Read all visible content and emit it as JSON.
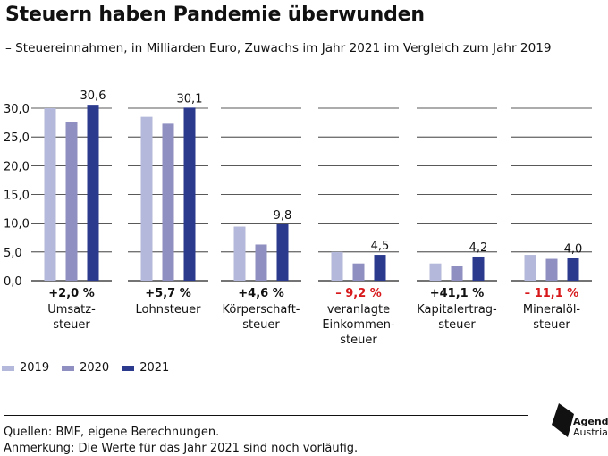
{
  "header": {
    "title": "Steuern haben Pandemie überwunden",
    "subtitle": "– Steuereinnahmen, in Milliarden Euro, Zuwachs im Jahr 2021 im Vergleich zum Jahr 2019"
  },
  "colors": {
    "y2019": "#b4b8da",
    "y2020": "#8f8fc2",
    "y2021": "#2b3a8c",
    "positive": "#111111",
    "negative": "#d7191c",
    "grid": "#222222"
  },
  "chart_data": {
    "type": "bar",
    "title": "Steuern haben Pandemie überwunden",
    "subtitle": "– Steuereinnahmen, in Milliarden Euro, Zuwachs im Jahr 2021 im Vergleich zum Jahr 2019",
    "categories": [
      {
        "label": [
          "Umsatz-",
          "steuer"
        ],
        "change": "+2,0 %",
        "change_sign": "positive",
        "label_2021": "30,6"
      },
      {
        "label": [
          "Lohnsteuer"
        ],
        "change": "+5,7 %",
        "change_sign": "positive",
        "label_2021": "30,1"
      },
      {
        "label": [
          "Körperschaft-",
          "steuer"
        ],
        "change": "+4,6 %",
        "change_sign": "positive",
        "label_2021": "9,8"
      },
      {
        "label": [
          "veranlagte",
          "Einkommen-",
          "steuer"
        ],
        "change": "– 9,2 %",
        "change_sign": "negative",
        "label_2021": "4,5"
      },
      {
        "label": [
          "Kapitalertrag-",
          "steuer"
        ],
        "change": "+41,1 %",
        "change_sign": "positive",
        "label_2021": "4,2"
      },
      {
        "label": [
          "Mineralöl-",
          "steuer"
        ],
        "change": "– 11,1 %",
        "change_sign": "negative",
        "label_2021": "4,0"
      }
    ],
    "series": [
      {
        "name": "2019",
        "values": [
          30.0,
          28.5,
          9.4,
          5.0,
          3.0,
          4.5
        ]
      },
      {
        "name": "2020",
        "values": [
          27.6,
          27.3,
          6.3,
          3.0,
          2.6,
          3.8
        ]
      },
      {
        "name": "2021",
        "values": [
          30.6,
          30.1,
          9.8,
          4.5,
          4.2,
          4.0
        ]
      }
    ],
    "yticks": [
      "0,0",
      "5,0",
      "10,0",
      "15,0",
      "20,0",
      "25,0",
      "30,0"
    ],
    "ylim": [
      0,
      30
    ],
    "grid": true,
    "legend": "bottom-left"
  },
  "footer": {
    "source": "Quellen: BMF, eigene Berechnungen.",
    "note": "Anmerkung: Die Werte für das Jahr 2021 sind noch vorläufig."
  },
  "logo": {
    "line1": "Agenda",
    "line2": "Austria"
  }
}
